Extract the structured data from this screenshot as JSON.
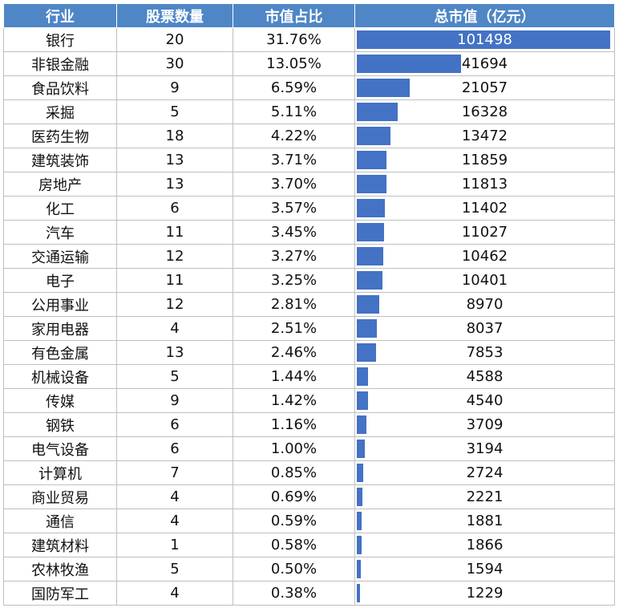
{
  "table": {
    "headers": [
      "行业",
      "股票数量",
      "市值占比",
      "总市值（亿元）"
    ]
  },
  "chart_data": {
    "type": "table",
    "columns": [
      "行业",
      "股票数量",
      "市值占比",
      "总市值（亿元）"
    ],
    "rows": [
      {
        "industry": "银行",
        "count": "20",
        "share": "31.76%",
        "cap": 101498
      },
      {
        "industry": "非银金融",
        "count": "30",
        "share": "13.05%",
        "cap": 41694
      },
      {
        "industry": "食品饮料",
        "count": "9",
        "share": "6.59%",
        "cap": 21057
      },
      {
        "industry": "采掘",
        "count": "5",
        "share": "5.11%",
        "cap": 16328
      },
      {
        "industry": "医药生物",
        "count": "18",
        "share": "4.22%",
        "cap": 13472
      },
      {
        "industry": "建筑装饰",
        "count": "13",
        "share": "3.71%",
        "cap": 11859
      },
      {
        "industry": "房地产",
        "count": "13",
        "share": "3.70%",
        "cap": 11813
      },
      {
        "industry": "化工",
        "count": "6",
        "share": "3.57%",
        "cap": 11402
      },
      {
        "industry": "汽车",
        "count": "11",
        "share": "3.45%",
        "cap": 11027
      },
      {
        "industry": "交通运输",
        "count": "12",
        "share": "3.27%",
        "cap": 10462
      },
      {
        "industry": "电子",
        "count": "11",
        "share": "3.25%",
        "cap": 10401
      },
      {
        "industry": "公用事业",
        "count": "12",
        "share": "2.81%",
        "cap": 8970
      },
      {
        "industry": "家用电器",
        "count": "4",
        "share": "2.51%",
        "cap": 8037
      },
      {
        "industry": "有色金属",
        "count": "13",
        "share": "2.46%",
        "cap": 7853
      },
      {
        "industry": "机械设备",
        "count": "5",
        "share": "1.44%",
        "cap": 4588
      },
      {
        "industry": "传媒",
        "count": "9",
        "share": "1.42%",
        "cap": 4540
      },
      {
        "industry": "钢铁",
        "count": "6",
        "share": "1.16%",
        "cap": 3709
      },
      {
        "industry": "电气设备",
        "count": "6",
        "share": "1.00%",
        "cap": 3194
      },
      {
        "industry": "计算机",
        "count": "7",
        "share": "0.85%",
        "cap": 2724
      },
      {
        "industry": "商业贸易",
        "count": "4",
        "share": "0.69%",
        "cap": 2221
      },
      {
        "industry": "通信",
        "count": "4",
        "share": "0.59%",
        "cap": 1881
      },
      {
        "industry": "建筑材料",
        "count": "1",
        "share": "0.58%",
        "cap": 1866
      },
      {
        "industry": "农林牧渔",
        "count": "5",
        "share": "0.50%",
        "cap": 1594
      },
      {
        "industry": "国防军工",
        "count": "4",
        "share": "0.38%",
        "cap": 1229
      }
    ],
    "bar_column": "总市值（亿元）",
    "bar_max": 101498,
    "bar_color": "#4472c4",
    "header_color": "#4f86c6"
  }
}
